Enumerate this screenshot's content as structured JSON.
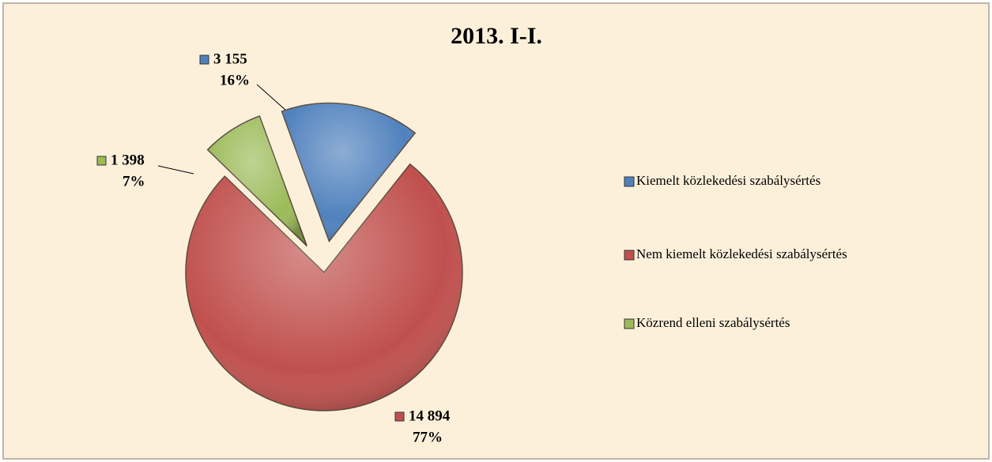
{
  "chart_data": {
    "type": "pie",
    "title": "2013. I-I.",
    "categories": [
      "Kiemelt közlekedési szabálysértés",
      "Nem kiemelt közlekedési szabálysértés",
      "Közrend elleni szabálysértés"
    ],
    "values": [
      3155,
      14894,
      1398
    ],
    "value_labels": [
      "3 155",
      "14 894",
      "1 398"
    ],
    "percentages": [
      16,
      77,
      7
    ],
    "percentage_labels": [
      "16%",
      "77%",
      "7%"
    ],
    "colors": [
      "#4f81bd",
      "#c0504d",
      "#9bbb59"
    ],
    "legend": "right"
  }
}
